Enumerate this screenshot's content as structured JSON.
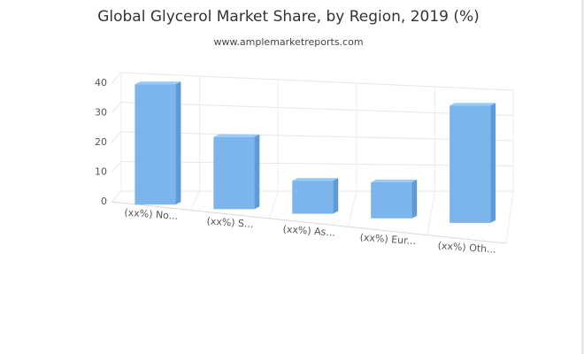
{
  "chart_data": {
    "type": "bar",
    "title": "Global Glycerol Market Share, by Region, 2019 (%)",
    "subtitle": "www.amplemarketreports.com",
    "categories": [
      "(xx%) No...",
      "(xx%) S...",
      "(xx%) As...",
      "(xx%) Eur...",
      "(xx%) Oth..."
    ],
    "values": [
      40,
      24,
      11,
      12,
      39
    ],
    "ylim": [
      0,
      40
    ],
    "yticks": [
      "0",
      "10",
      "20",
      "30",
      "40"
    ],
    "xlabel": "",
    "ylabel": "",
    "grid": true,
    "bar_color": "#7cb5ec",
    "bar_side_color": "#5e9bd6",
    "bar_top_color": "#9ccaf2"
  }
}
